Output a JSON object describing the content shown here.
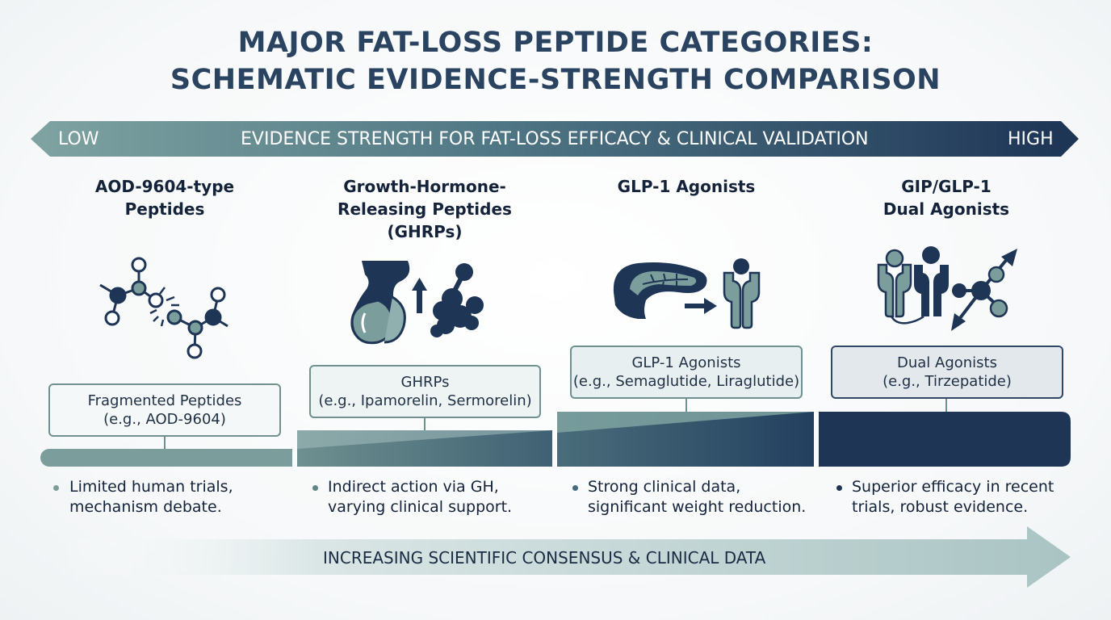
{
  "title": {
    "line1": "MAJOR FAT-LOSS PEPTIDE CATEGORIES:",
    "line2": "SCHEMATIC EVIDENCE-STRENGTH COMPARISON"
  },
  "evidence_arrow": {
    "low_label": "LOW",
    "center_label": "EVIDENCE STRENGTH FOR FAT-LOSS EFFICACY & CLINICAL VALIDATION",
    "high_label": "HIGH"
  },
  "categories": [
    {
      "title_lines": [
        "AOD-9604-type",
        "Peptides"
      ],
      "icon": "fragmented-molecule-icon",
      "box_lines": [
        "Fragmented Peptides",
        "(e.g., AOD-9604)"
      ],
      "bullet_lines": [
        "Limited human trials,",
        "mechanism debate."
      ]
    },
    {
      "title_lines": [
        "Growth-Hormone-",
        "Releasing Peptides",
        "(GHRPs)"
      ],
      "icon": "pituitary-gh-release-icon",
      "box_lines": [
        "GHRPs",
        "(e.g., Ipamorelin, Sermorelin)"
      ],
      "bullet_lines": [
        "Indirect action via GH,",
        "varying clinical support."
      ]
    },
    {
      "title_lines": [
        "GLP-1 Agonists"
      ],
      "icon": "pancreas-receptor-icon",
      "box_lines": [
        "GLP-1 Agonists",
        "(e.g., Semaglutide, Liraglutide)"
      ],
      "bullet_lines": [
        "Strong clinical data,",
        "significant weight reduction."
      ]
    },
    {
      "title_lines": [
        "GIP/GLP-1",
        "Dual Agonists"
      ],
      "icon": "dual-receptor-icon",
      "box_lines": [
        "Dual Agonists",
        "(e.g., Tirzepatide)"
      ],
      "bullet_lines": [
        "Superior efficacy in recent",
        "trials, robust evidence."
      ]
    }
  ],
  "bottom_arrow": {
    "label": "INCREASING SCIENTIFIC CONSENSUS & CLINICAL DATA"
  },
  "colors": {
    "teal": "#7b9d9b",
    "teal_dark": "#5f8584",
    "navy": "#1e3556",
    "mid": "#456a7e"
  }
}
